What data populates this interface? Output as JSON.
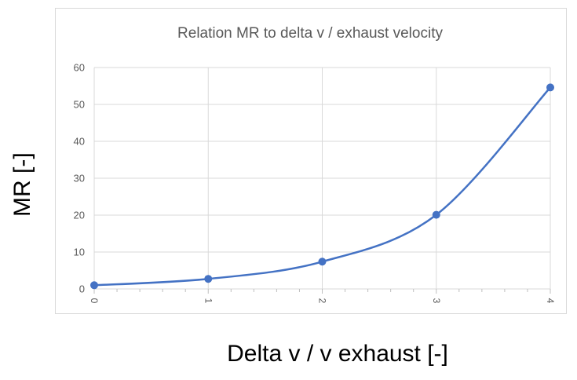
{
  "chart_data": {
    "type": "line",
    "title": "Relation MR to delta v / exhaust velocity",
    "xlabel": "Delta v / v exhaust [-]",
    "ylabel": "MR [-]",
    "x": [
      0,
      1,
      2,
      3,
      4
    ],
    "xticks": [
      "0",
      "1",
      "2",
      "3",
      "4"
    ],
    "yticks": [
      "0",
      "10",
      "20",
      "30",
      "40",
      "50",
      "60"
    ],
    "xlim": [
      0,
      4
    ],
    "ylim": [
      0,
      60
    ],
    "grid": true,
    "smooth": true,
    "series": [
      {
        "values": [
          1,
          2.72,
          7.39,
          20.09,
          54.6
        ],
        "color": "#4472c4"
      }
    ],
    "colors": {
      "series": "#4472c4",
      "grid": "#d9d9d9",
      "tick_text": "#595959",
      "title_text": "#595959"
    }
  }
}
